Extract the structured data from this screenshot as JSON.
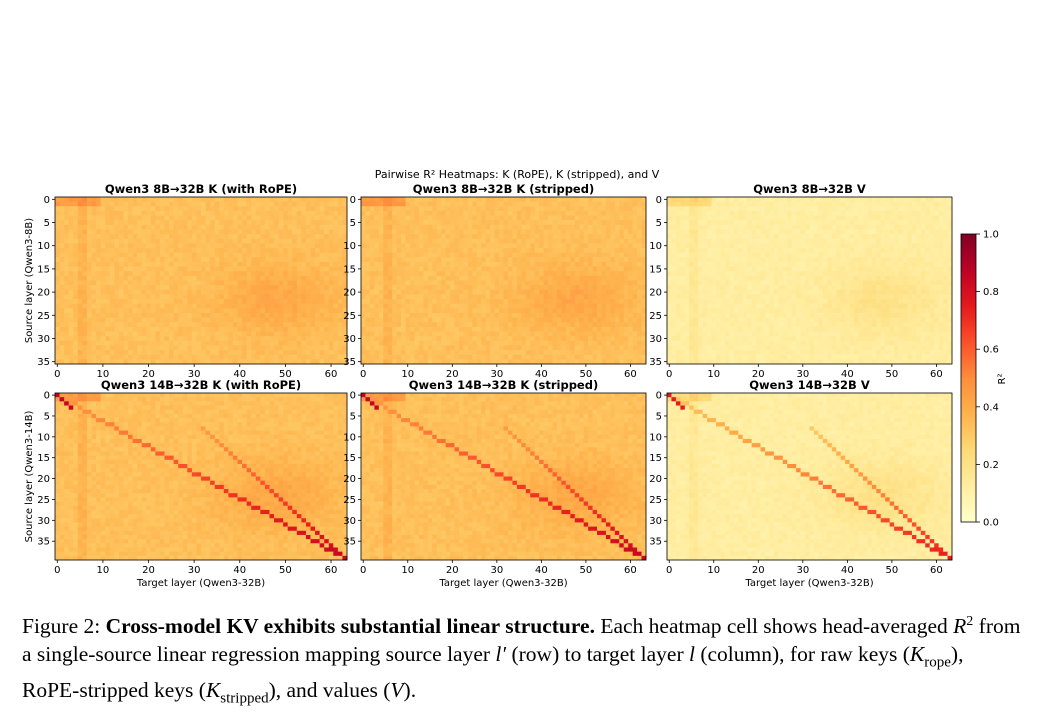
{
  "chart_data": {
    "type": "heatmap",
    "title": "Pairwise R² Heatmaps: K (RoPE), K (stripped), and V",
    "colorbar": {
      "label": "R²",
      "range": [
        0.0,
        1.0
      ],
      "ticks": [
        "0.0",
        "0.2",
        "0.4",
        "0.6",
        "0.8",
        "1.0"
      ],
      "colormap": "YlOrRd"
    },
    "xlabel": "Target layer (Qwen3-32B)",
    "x_ticks": [
      "0",
      "10",
      "20",
      "30",
      "40",
      "50",
      "60"
    ],
    "target_layers": 64,
    "panels": [
      {
        "title": "Qwen3 8B→32B  K (with RoPE)",
        "ylabel": "Source layer (Qwen3-8B)",
        "source_layers": 36,
        "y_ticks": [
          "0",
          "5",
          "10",
          "15",
          "20",
          "25",
          "30",
          "35"
        ],
        "base_r2": 0.33,
        "diagonal_r2": null
      },
      {
        "title": "Qwen3 8B→32B  K (stripped)",
        "ylabel": "",
        "source_layers": 36,
        "y_ticks": [
          "0",
          "5",
          "10",
          "15",
          "20",
          "25",
          "30",
          "35"
        ],
        "base_r2": 0.33,
        "diagonal_r2": null
      },
      {
        "title": "Qwen3 8B→32B  V",
        "ylabel": "",
        "source_layers": 36,
        "y_ticks": [
          "0",
          "5",
          "10",
          "15",
          "20",
          "25",
          "30",
          "35"
        ],
        "base_r2": 0.12,
        "diagonal_r2": null
      },
      {
        "title": "Qwen3 14B→32B  K (with RoPE)",
        "ylabel": "Source layer (Qwen3-14B)",
        "source_layers": 40,
        "y_ticks": [
          "0",
          "5",
          "10",
          "15",
          "20",
          "25",
          "30",
          "35"
        ],
        "base_r2": 0.33,
        "diagonal_r2": [
          0.45,
          0.85
        ]
      },
      {
        "title": "Qwen3 14B→32B  K (stripped)",
        "ylabel": "",
        "source_layers": 40,
        "y_ticks": [
          "0",
          "5",
          "10",
          "15",
          "20",
          "25",
          "30",
          "35"
        ],
        "base_r2": 0.33,
        "diagonal_r2": [
          0.45,
          0.85
        ]
      },
      {
        "title": "Qwen3 14B→32B  V",
        "ylabel": "",
        "source_layers": 40,
        "y_ticks": [
          "0",
          "5",
          "10",
          "15",
          "20",
          "25",
          "30",
          "35"
        ],
        "base_r2": 0.12,
        "diagonal_r2": [
          0.3,
          0.75
        ]
      }
    ]
  },
  "caption": {
    "prefix": "Figure 2:",
    "bold": "Cross-model KV exhibits substantial linear structure.",
    "text_1": "Each heatmap cell shows head-averaged",
    "r": "R",
    "r_sup": "2",
    "text_2": "from a single-source linear regression mapping source layer",
    "l_prime": "l′",
    "text_3": "(row) to target layer",
    "l": "l",
    "text_4": "(column), for raw keys (",
    "k": "K",
    "rope_sub": "rope",
    "text_5": "), RoPE-stripped keys (",
    "stripped_sub": "stripped",
    "text_6": "), and values (",
    "v": "V",
    "text_7": ")."
  }
}
